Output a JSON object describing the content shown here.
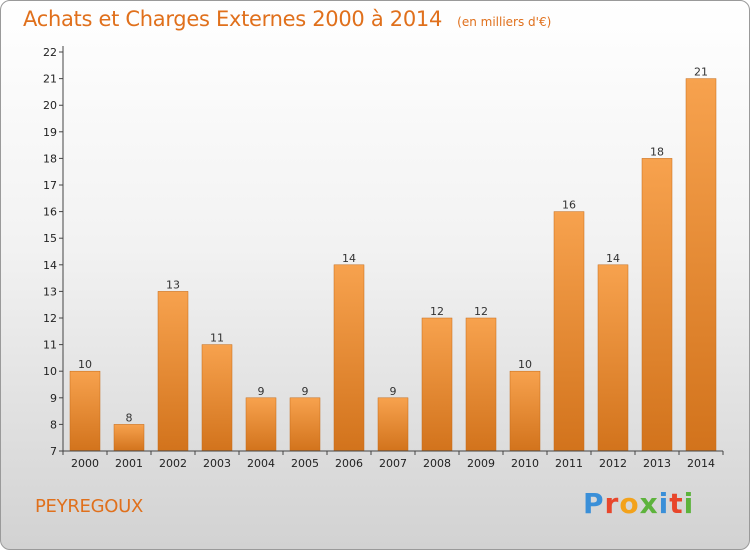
{
  "header": {
    "title": "Achats et Charges Externes 2000 à 2014",
    "subtitle": "(en milliers d'€)"
  },
  "footer": {
    "commune": "PEYREGOUX",
    "logo_text": "Proxiti",
    "logo_colors": [
      "#3a8fd8",
      "#e8462b",
      "#f3a21b",
      "#5db33c",
      "#3a8fd8",
      "#e8462b",
      "#5db33c"
    ]
  },
  "colors": {
    "bar_top": "#f7a24e",
    "bar_bottom": "#d2731c",
    "accent": "#e0701c"
  },
  "chart_data": {
    "type": "bar",
    "categories": [
      "2000",
      "2001",
      "2002",
      "2003",
      "2004",
      "2005",
      "2006",
      "2007",
      "2008",
      "2009",
      "2010",
      "2011",
      "2012",
      "2013",
      "2014"
    ],
    "values": [
      10,
      8,
      13,
      11,
      9,
      9,
      14,
      9,
      12,
      12,
      10,
      16,
      14,
      18,
      21
    ],
    "title": "Achats et Charges Externes 2000 à 2014",
    "xlabel": "",
    "ylabel": "",
    "ylim": [
      7,
      22
    ],
    "yticks": [
      7,
      8,
      9,
      10,
      11,
      12,
      13,
      14,
      15,
      16,
      17,
      18,
      19,
      20,
      21,
      22
    ],
    "grid": false,
    "data_labels": true
  }
}
